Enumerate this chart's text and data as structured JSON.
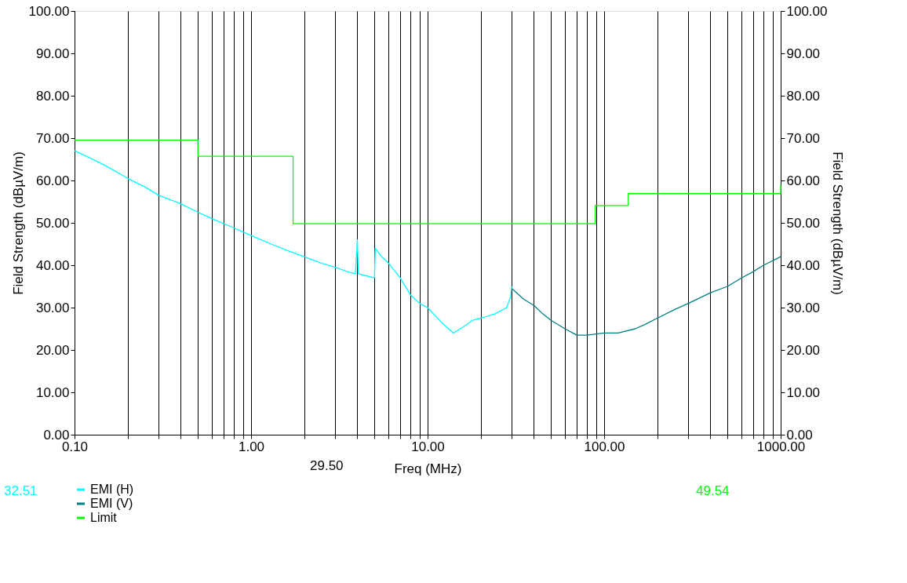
{
  "chart_data": {
    "type": "line",
    "xlabel": "Freq (MHz)",
    "ylabel": "Field Strength (dBµV/m)",
    "y2label": "Field Strength (dBµV/m)",
    "log": "x",
    "grid": "x",
    "legend": "bottom",
    "line_style": "solid",
    "marker": "none",
    "xlim": [
      0.1,
      1000
    ],
    "xticks": [
      {
        "value": 0.1,
        "label": "0.10"
      },
      {
        "value": 0.2,
        "label": null
      },
      {
        "value": 0.3,
        "label": null
      },
      {
        "value": 0.4,
        "label": null
      },
      {
        "value": 0.5,
        "label": null
      },
      {
        "value": 0.6,
        "label": null
      },
      {
        "value": 0.7,
        "label": null
      },
      {
        "value": 0.8,
        "label": null
      },
      {
        "value": 0.9,
        "label": null
      },
      {
        "value": 1,
        "label": "1.00"
      },
      {
        "value": 2,
        "label": null
      },
      {
        "value": 3,
        "label": null
      },
      {
        "value": 4,
        "label": null
      },
      {
        "value": 5,
        "label": null
      },
      {
        "value": 6,
        "label": null
      },
      {
        "value": 7,
        "label": null
      },
      {
        "value": 8,
        "label": null
      },
      {
        "value": 9,
        "label": null
      },
      {
        "value": 10,
        "label": "10.00"
      },
      {
        "value": 20,
        "label": null
      },
      {
        "value": 30,
        "label": null
      },
      {
        "value": 40,
        "label": null
      },
      {
        "value": 50,
        "label": null
      },
      {
        "value": 60,
        "label": null
      },
      {
        "value": 70,
        "label": null
      },
      {
        "value": 80,
        "label": null
      },
      {
        "value": 90,
        "label": null
      },
      {
        "value": 100,
        "label": "100.00"
      },
      {
        "value": 200,
        "label": null
      },
      {
        "value": 300,
        "label": null
      },
      {
        "value": 400,
        "label": null
      },
      {
        "value": 500,
        "label": null
      },
      {
        "value": 600,
        "label": null
      },
      {
        "value": 700,
        "label": null
      },
      {
        "value": 800,
        "label": null
      },
      {
        "value": 900,
        "label": null
      },
      {
        "value": 1000,
        "label": "1000.00"
      }
    ],
    "ylim": [
      0,
      100
    ],
    "yticks": [
      {
        "value": 0,
        "label": "0.00"
      },
      {
        "value": 10,
        "label": "10.00"
      },
      {
        "value": 20,
        "label": "20.00"
      },
      {
        "value": 30,
        "label": "30.00"
      },
      {
        "value": 40,
        "label": "40.00"
      },
      {
        "value": 50,
        "label": "50.00"
      },
      {
        "value": 60,
        "label": "60.00"
      },
      {
        "value": 70,
        "label": "70.00"
      },
      {
        "value": 80,
        "label": "80.00"
      },
      {
        "value": 90,
        "label": "90.00"
      },
      {
        "value": 100,
        "label": "100.00"
      }
    ],
    "y2lim": [
      0,
      100
    ],
    "y2ticks": [
      {
        "value": 0,
        "label": "0.00"
      },
      {
        "value": 10,
        "label": "10.00"
      },
      {
        "value": 20,
        "label": "20.00"
      },
      {
        "value": 30,
        "label": "30.00"
      },
      {
        "value": 40,
        "label": "40.00"
      },
      {
        "value": 50,
        "label": "50.00"
      },
      {
        "value": 60,
        "label": "60.00"
      },
      {
        "value": 70,
        "label": "70.00"
      },
      {
        "value": 80,
        "label": "80.00"
      },
      {
        "value": 90,
        "label": "90.00"
      },
      {
        "value": 100,
        "label": "100.00"
      }
    ],
    "annotations": [
      "29.50",
      "32.51",
      "49.54"
    ],
    "series": [
      {
        "name": "EMI (H)",
        "color": "#00ffff",
        "x": [
          0.1,
          0.12,
          0.15,
          0.2,
          0.25,
          0.3,
          0.4,
          0.5,
          0.6,
          0.8,
          1.0,
          1.3,
          1.6,
          2.0,
          2.5,
          3.0,
          3.5,
          3.9,
          4.0,
          4.05,
          4.5,
          5.0,
          5.05,
          5.5,
          6,
          7,
          8,
          9,
          10,
          12,
          14,
          16,
          18,
          20,
          24,
          28,
          29.5,
          30
        ],
        "values": [
          67,
          65.5,
          63.5,
          60.5,
          58.5,
          56.5,
          54.5,
          52.5,
          51,
          48.8,
          47,
          45,
          43.5,
          42,
          40.5,
          39.5,
          38.5,
          38,
          46,
          38,
          37.5,
          37,
          44,
          42,
          40.5,
          37,
          33,
          31,
          30,
          26.5,
          24,
          25.5,
          27,
          27.5,
          28.5,
          30,
          32.5,
          35
        ]
      },
      {
        "name": "EMI (V)",
        "color": "#008080",
        "x": [
          30,
          35,
          40,
          45,
          50,
          60,
          70,
          80,
          100,
          120,
          150,
          170,
          200,
          250,
          300,
          400,
          500,
          600,
          700,
          800,
          1000
        ],
        "values": [
          34.5,
          32,
          30.5,
          28.5,
          27,
          25,
          23.5,
          23.5,
          24,
          24,
          25,
          26,
          27.5,
          29.5,
          31,
          33.5,
          35,
          37,
          38.5,
          40,
          42
        ]
      },
      {
        "name": "Limit",
        "type": "step",
        "color": "#00ff00",
        "x": [
          0.1,
          0.5,
          1.73,
          89,
          137,
          990,
          1000
        ],
        "values": [
          69.5,
          65.7,
          49.8,
          54.1,
          56.9,
          56.9,
          59
        ]
      }
    ]
  }
}
